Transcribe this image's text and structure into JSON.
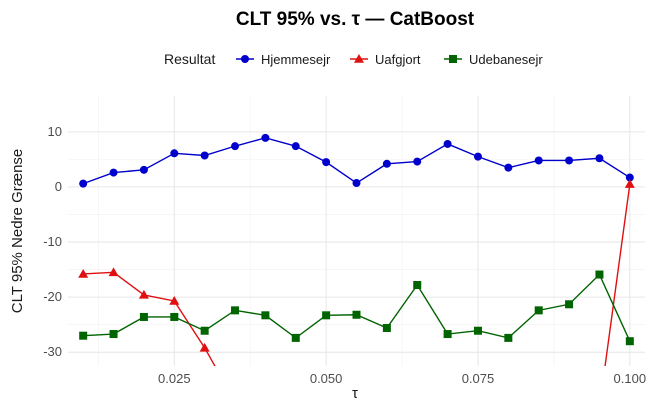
{
  "chart_data": {
    "type": "line",
    "title": "CLT 95% vs. τ — CatBoost",
    "xlabel": "τ",
    "ylabel": "CLT 95% Nedre Grænse",
    "xlim": [
      0.0075,
      0.1025
    ],
    "ylim": [
      -32.5,
      16.5
    ],
    "x_ticks": [
      0.025,
      0.05,
      0.075,
      0.1
    ],
    "x_tick_labels": [
      "0.025",
      "0.050",
      "0.075",
      "0.100"
    ],
    "y_ticks": [
      -30,
      -20,
      -10,
      0,
      10
    ],
    "y_tick_labels": [
      "-30",
      "-20",
      "-10",
      "0",
      "10"
    ],
    "grid": true,
    "legend": {
      "title": "Resultat",
      "position": "top"
    },
    "x": [
      0.01,
      0.015,
      0.02,
      0.025,
      0.03,
      0.035,
      0.04,
      0.045,
      0.05,
      0.055,
      0.06,
      0.065,
      0.07,
      0.075,
      0.08,
      0.085,
      0.09,
      0.095,
      0.1
    ],
    "series": [
      {
        "name": "Hjemmesejr",
        "color": "#0000cc",
        "marker": "circle",
        "values": [
          0.6,
          2.6,
          3.1,
          6.1,
          5.7,
          7.4,
          8.9,
          7.4,
          4.5,
          0.7,
          4.2,
          4.6,
          7.8,
          5.5,
          3.5,
          4.8,
          4.8,
          5.2,
          1.7
        ]
      },
      {
        "name": "Uafgjort",
        "color": "#e01010",
        "marker": "triangle",
        "values": [
          -15.8,
          -15.5,
          -19.6,
          -20.7,
          -29.2,
          -39.0,
          null,
          null,
          null,
          null,
          null,
          null,
          null,
          null,
          null,
          null,
          null,
          -40.0,
          0.5
        ]
      },
      {
        "name": "Udebanesejr",
        "color": "#006400",
        "marker": "square",
        "values": [
          -27.0,
          -26.7,
          -23.6,
          -23.6,
          -26.1,
          -22.4,
          -23.3,
          -27.4,
          -23.3,
          -23.2,
          -25.6,
          -17.8,
          -26.7,
          -26.1,
          -27.4,
          -22.4,
          -21.3,
          -15.9,
          -28.0
        ]
      }
    ]
  }
}
